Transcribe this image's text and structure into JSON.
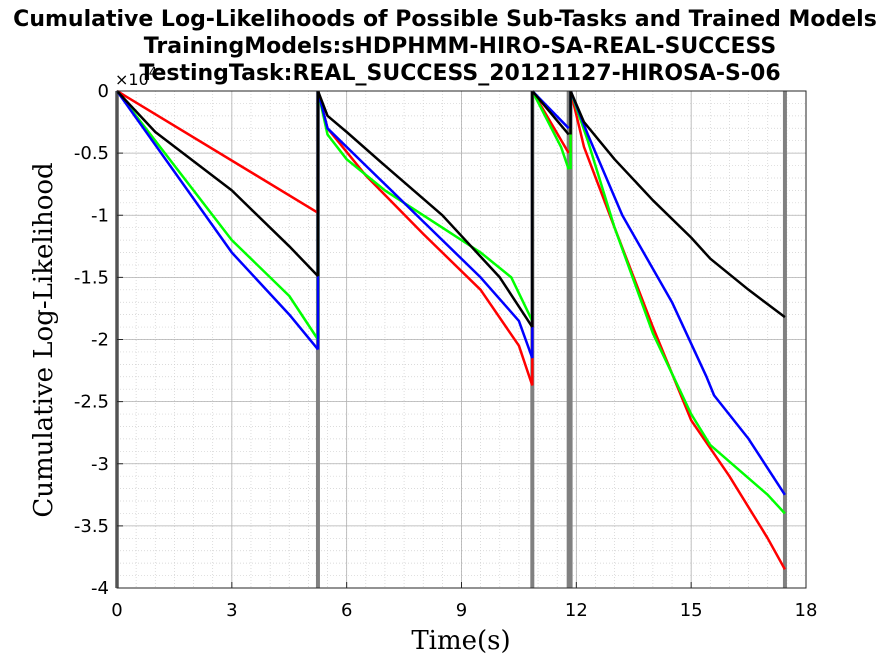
{
  "chart_data": {
    "type": "line",
    "title": [
      "Cumulative Log-Likelihoods of Possible Sub-Tasks and Trained Models",
      "TrainingModels:sHDPHMM-HIRO-SA-REAL-SUCCESS",
      "TestingTask:REAL_SUCCESS_20121127-HIROSA-S-06"
    ],
    "xlabel": "Time(s)",
    "ylabel": "Cumulative Log-Likelihood",
    "exponent_label": "×10",
    "exponent_power": "4",
    "xlim": [
      0,
      18
    ],
    "ylim": [
      -40000,
      0
    ],
    "xticks": [
      0,
      3,
      6,
      9,
      12,
      15,
      18
    ],
    "xtick_labels": [
      "0",
      "3",
      "6",
      "9",
      "12",
      "15",
      "18"
    ],
    "yticks": [
      0,
      -5000,
      -10000,
      -15000,
      -20000,
      -25000,
      -30000,
      -35000,
      -40000
    ],
    "ytick_labels": [
      "0",
      "-0.5",
      "-1",
      "-1.5",
      "-2",
      "-2.5",
      "-3",
      "-3.5",
      "-4"
    ],
    "grid": true,
    "minor_grid": true,
    "boundaries": [
      0,
      5.25,
      10.85,
      11.8,
      11.85,
      17.45
    ],
    "boundary_color": "#808080",
    "series": [
      {
        "color": "#ff0000",
        "segments": [
          [
            [
              0,
              0
            ],
            [
              5.25,
              -9800
            ]
          ],
          [
            [
              5.25,
              0
            ],
            [
              5.5,
              -3000
            ],
            [
              6.5,
              -6800
            ],
            [
              8,
              -11500
            ],
            [
              9.5,
              -16000
            ],
            [
              10.5,
              -20500
            ],
            [
              10.85,
              -23700
            ]
          ],
          [
            [
              10.85,
              0
            ],
            [
              11.8,
              -5000
            ]
          ],
          [
            [
              11.85,
              0
            ],
            [
              12.2,
              -4500
            ],
            [
              13,
              -11000
            ],
            [
              14,
              -19000
            ],
            [
              15,
              -26500
            ],
            [
              16,
              -31000
            ],
            [
              17,
              -36000
            ],
            [
              17.45,
              -38500
            ]
          ]
        ]
      },
      {
        "color": "#00ff00",
        "segments": [
          [
            [
              0,
              0
            ],
            [
              3,
              -12000
            ],
            [
              4.5,
              -16500
            ],
            [
              5.25,
              -20000
            ]
          ],
          [
            [
              5.25,
              0
            ],
            [
              5.5,
              -3500
            ],
            [
              6,
              -5500
            ],
            [
              7,
              -8000
            ],
            [
              8.5,
              -11000
            ],
            [
              9.5,
              -13000
            ],
            [
              10.3,
              -15000
            ],
            [
              10.85,
              -18500
            ]
          ],
          [
            [
              10.85,
              0
            ],
            [
              11.6,
              -4500
            ],
            [
              11.8,
              -6300
            ]
          ],
          [
            [
              11.85,
              0
            ],
            [
              12.3,
              -4000
            ],
            [
              13,
              -11000
            ],
            [
              14,
              -19500
            ],
            [
              15,
              -26000
            ],
            [
              15.5,
              -28500
            ],
            [
              17,
              -32500
            ],
            [
              17.45,
              -34000
            ]
          ]
        ]
      },
      {
        "color": "#0000ff",
        "segments": [
          [
            [
              0,
              0
            ],
            [
              3,
              -13000
            ],
            [
              4.5,
              -18000
            ],
            [
              5.25,
              -20800
            ]
          ],
          [
            [
              5.25,
              0
            ],
            [
              5.5,
              -3000
            ],
            [
              6.5,
              -6000
            ],
            [
              8,
              -10500
            ],
            [
              9.5,
              -15000
            ],
            [
              10.5,
              -18500
            ],
            [
              10.85,
              -21500
            ]
          ],
          [
            [
              10.85,
              0
            ],
            [
              11.8,
              -3000
            ]
          ],
          [
            [
              11.85,
              0
            ],
            [
              12.3,
              -3500
            ],
            [
              13.2,
              -10000
            ],
            [
              14.5,
              -17000
            ],
            [
              15.4,
              -23000
            ],
            [
              15.6,
              -24500
            ],
            [
              16.5,
              -28000
            ],
            [
              17.45,
              -32500
            ]
          ]
        ]
      },
      {
        "color": "#000000",
        "segments": [
          [
            [
              0,
              0
            ],
            [
              1,
              -3300
            ],
            [
              3,
              -8000
            ],
            [
              4.5,
              -12500
            ],
            [
              5.25,
              -14900
            ]
          ],
          [
            [
              5.25,
              0
            ],
            [
              5.5,
              -2000
            ],
            [
              6,
              -3300
            ],
            [
              7,
              -6000
            ],
            [
              8.5,
              -10000
            ],
            [
              10,
              -15000
            ],
            [
              10.85,
              -19000
            ]
          ],
          [
            [
              10.85,
              0
            ],
            [
              11.8,
              -3500
            ]
          ],
          [
            [
              11.85,
              0
            ],
            [
              12.2,
              -2500
            ],
            [
              13,
              -5500
            ],
            [
              14,
              -8800
            ],
            [
              15,
              -11800
            ],
            [
              15.5,
              -13500
            ],
            [
              16.5,
              -16000
            ],
            [
              17.45,
              -18200
            ]
          ]
        ]
      }
    ]
  }
}
